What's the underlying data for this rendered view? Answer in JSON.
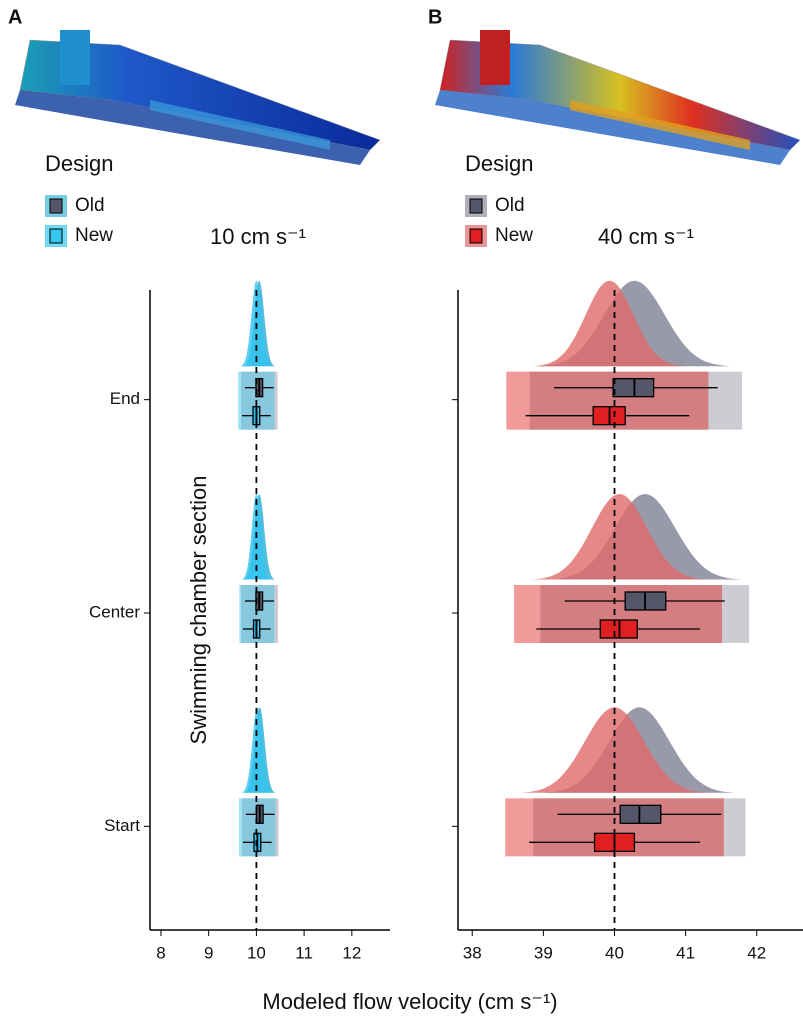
{
  "figure": {
    "x_label": "Modeled flow velocity (cm s⁻¹)",
    "y_label": "Swimming chamber section"
  },
  "chart_data": [
    {
      "type": "raincloud",
      "panel": "A",
      "legend_title": "Design",
      "annotation": "10 cm s⁻¹",
      "categories": [
        "Start",
        "Center",
        "End"
      ],
      "ref_line": 10,
      "xlim": [
        7.77,
        12.8
      ],
      "xticks": [
        8,
        9,
        10,
        11,
        12
      ],
      "series": [
        {
          "name": "Old",
          "color": "#55566a",
          "density_color": "#3fb6d9",
          "stats": [
            {
              "low": 9.78,
              "q1": 10.0,
              "median": 10.07,
              "q3": 10.14,
              "high": 10.38
            },
            {
              "low": 9.76,
              "q1": 9.99,
              "median": 10.06,
              "q3": 10.13,
              "high": 10.37
            },
            {
              "low": 9.76,
              "q1": 9.99,
              "median": 10.06,
              "q3": 10.13,
              "high": 10.36
            }
          ]
        },
        {
          "name": "New",
          "color": "#33c4f0",
          "density_color": "#33c4f0",
          "stats": [
            {
              "low": 9.72,
              "q1": 9.95,
              "median": 10.02,
              "q3": 10.09,
              "high": 10.32
            },
            {
              "low": 9.72,
              "q1": 9.94,
              "median": 10.0,
              "q3": 10.07,
              "high": 10.3
            },
            {
              "low": 9.7,
              "q1": 9.93,
              "median": 10.0,
              "q3": 10.07,
              "high": 10.3
            }
          ]
        }
      ]
    },
    {
      "type": "raincloud",
      "panel": "B",
      "legend_title": "Design",
      "annotation": "40 cm s⁻¹",
      "categories": [
        null,
        null,
        null
      ],
      "ref_line": 40,
      "xlim": [
        37.8,
        42.65
      ],
      "xticks": [
        38,
        39,
        40,
        41,
        42
      ],
      "series": [
        {
          "name": "Old",
          "color": "#55566a",
          "density_color": "#8e8fa0",
          "stats": [
            {
              "low": 39.2,
              "q1": 40.08,
              "median": 40.35,
              "q3": 40.65,
              "high": 41.5
            },
            {
              "low": 39.3,
              "q1": 40.15,
              "median": 40.43,
              "q3": 40.72,
              "high": 41.55
            },
            {
              "low": 39.15,
              "q1": 39.98,
              "median": 40.28,
              "q3": 40.55,
              "high": 41.45
            }
          ]
        },
        {
          "name": "New",
          "color": "#e02020",
          "density_color": "#e06a6a",
          "stats": [
            {
              "low": 38.8,
              "q1": 39.72,
              "median": 40.0,
              "q3": 40.28,
              "high": 41.2
            },
            {
              "low": 38.9,
              "q1": 39.8,
              "median": 40.07,
              "q3": 40.32,
              "high": 41.2
            },
            {
              "low": 38.75,
              "q1": 39.7,
              "median": 39.93,
              "q3": 40.15,
              "high": 41.05
            }
          ]
        }
      ]
    }
  ]
}
